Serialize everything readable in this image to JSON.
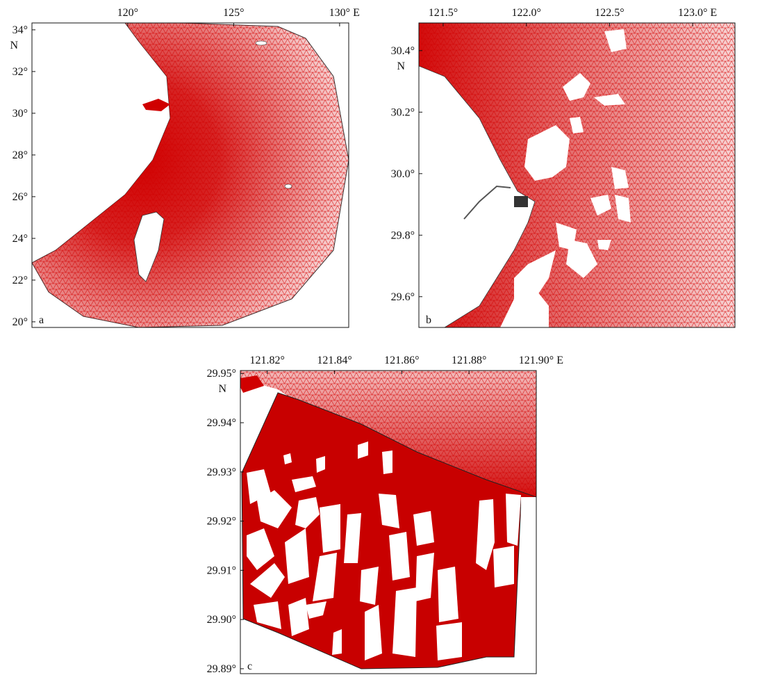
{
  "panels": [
    {
      "label": "a",
      "y_unit": "N",
      "xlim": [
        115.48,
        130.43
      ],
      "ylim": [
        19.73,
        34.33
      ],
      "xticks": [
        {
          "value": 120,
          "label": "120°"
        },
        {
          "value": 125,
          "label": "125°"
        },
        {
          "value": 130,
          "label": "130° E"
        }
      ],
      "yticks": [
        {
          "value": 34,
          "label": "34°"
        },
        {
          "value": 32,
          "label": "32°"
        },
        {
          "value": 30,
          "label": "30°"
        },
        {
          "value": 28,
          "label": "28°"
        },
        {
          "value": 26,
          "label": "26°"
        },
        {
          "value": 24,
          "label": "24°"
        },
        {
          "value": 22,
          "label": "22°"
        },
        {
          "value": 20,
          "label": "20°"
        }
      ]
    },
    {
      "label": "b",
      "y_unit": "N",
      "xlim": [
        121.354,
        123.254
      ],
      "ylim": [
        29.5,
        30.49
      ],
      "xticks": [
        {
          "value": 121.5,
          "label": "121.5°"
        },
        {
          "value": 122.0,
          "label": "122.0°"
        },
        {
          "value": 122.5,
          "label": "122.5°"
        },
        {
          "value": 123.0,
          "label": "123.0° E"
        }
      ],
      "yticks": [
        {
          "value": 30.4,
          "label": "30.4°"
        },
        {
          "value": 30.2,
          "label": "30.2°"
        },
        {
          "value": 30.0,
          "label": "30.0°"
        },
        {
          "value": 29.8,
          "label": "29.8°"
        },
        {
          "value": 29.6,
          "label": "29.6°"
        }
      ]
    },
    {
      "label": "c",
      "y_unit": "N",
      "xlim": [
        121.812,
        121.9
      ],
      "ylim": [
        29.889,
        29.9506
      ],
      "xticks": [
        {
          "value": 121.82,
          "label": "121.82°"
        },
        {
          "value": 121.84,
          "label": "121.84°"
        },
        {
          "value": 121.86,
          "label": "121.86°"
        },
        {
          "value": 121.88,
          "label": "121.88°"
        },
        {
          "value": 121.9,
          "label": "121.90° E"
        }
      ],
      "yticks": [
        {
          "value": 29.95,
          "label": "29.95°"
        },
        {
          "value": 29.94,
          "label": "29.94°"
        },
        {
          "value": 29.93,
          "label": "29.93°"
        },
        {
          "value": 29.92,
          "label": "29.92°"
        },
        {
          "value": 29.91,
          "label": "29.91°"
        },
        {
          "value": 29.9,
          "label": "29.90°"
        },
        {
          "value": 29.89,
          "label": "29.89°"
        }
      ]
    }
  ]
}
